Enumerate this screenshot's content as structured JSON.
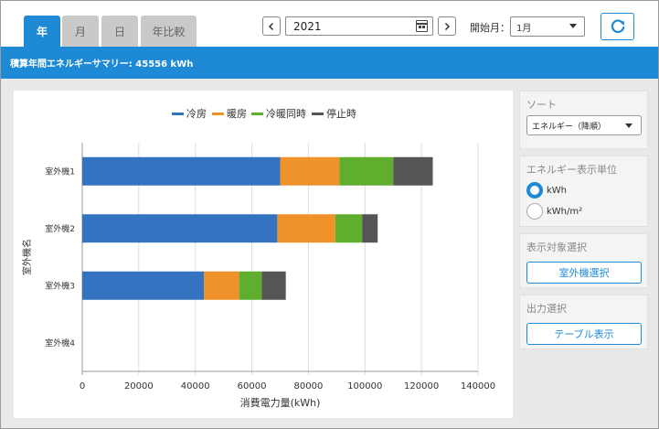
{
  "tabs": [
    {
      "label": "年",
      "active": true
    },
    {
      "label": "月",
      "active": false
    },
    {
      "label": "日",
      "active": false
    },
    {
      "label": "年比較",
      "active": false
    }
  ],
  "toolbar": {
    "prev_icon": "chevron-left-icon",
    "next_icon": "chevron-right-icon",
    "year_value": "2021",
    "calendar_icon": "calendar-icon",
    "start_label": "開始月：",
    "start_value": "1月",
    "refresh_icon": "refresh-icon"
  },
  "summary": {
    "text": "積算年間エネルギーサマリー: 45556 kWh"
  },
  "colors": {
    "accent": "#1e8ad6"
  },
  "chart_data": {
    "type": "bar",
    "orientation": "horizontal",
    "stacked": true,
    "categories": [
      "室外機1",
      "室外機2",
      "室外機3",
      "室外機4"
    ],
    "series": [
      {
        "name": "冷房",
        "color": "#3473c0",
        "values": [
          70000,
          69000,
          43000,
          0
        ]
      },
      {
        "name": "暖房",
        "color": "#f0922a",
        "values": [
          21000,
          20500,
          12500,
          0
        ]
      },
      {
        "name": "冷暖同時",
        "color": "#5fae2e",
        "values": [
          19000,
          9500,
          8000,
          0
        ]
      },
      {
        "name": "停止時",
        "color": "#555555",
        "values": [
          14000,
          5500,
          8500,
          0
        ]
      }
    ],
    "xlabel": "消費電力量(kWh)",
    "ylabel": "室外機名",
    "xlim": [
      0,
      140000
    ],
    "xticks": [
      0,
      20000,
      40000,
      60000,
      80000,
      100000,
      120000,
      140000
    ],
    "legend_position": "top",
    "grid": "vertical"
  },
  "sidebar": {
    "sort": {
      "title": "ソート",
      "value": "エネルギー（降順）"
    },
    "unit": {
      "title": "エネルギー表示単位",
      "options": [
        {
          "label": "kWh",
          "selected": true
        },
        {
          "label": "kWh/m²",
          "selected": false
        }
      ]
    },
    "target": {
      "title": "表示対象選択",
      "button": "室外機選択"
    },
    "output": {
      "title": "出力選択",
      "button": "テーブル表示"
    }
  }
}
